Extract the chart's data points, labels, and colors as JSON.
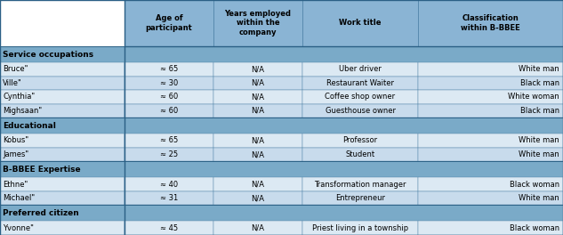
{
  "header_row": [
    "Age of\nparticipant",
    "Years employed\nwithin the\ncompany",
    "Work title",
    "Classification\nwithin B-BBEE"
  ],
  "header_bg": "#8ab4d4",
  "section_bg": "#7aaac8",
  "row_bg_even": "#dce9f3",
  "row_bg_odd": "#c8dbec",
  "border_color": "#4a7fa5",
  "border_color_thick": "#2a5f85",
  "sections": [
    {
      "section_label": "Service occupations",
      "rows": [
        [
          "Bruce\"",
          "≈ 65",
          "N/A",
          "Uber driver",
          "White man"
        ],
        [
          "Ville\"",
          "≈ 30",
          "N/A",
          "Restaurant Waiter",
          "Black man"
        ],
        [
          "Cynthia\"",
          "≈ 60",
          "N/A",
          "Coffee shop owner",
          "White woman"
        ],
        [
          "Mighsaan\"",
          "≈ 60",
          "N/A",
          "Guesthouse owner",
          "Black man"
        ]
      ]
    },
    {
      "section_label": "Educational",
      "rows": [
        [
          "Kobus\"",
          "≈ 65",
          "N/A",
          "Professor",
          "White man"
        ],
        [
          "James\"",
          "≈ 25",
          "N/A",
          "Student",
          "White man"
        ]
      ]
    },
    {
      "section_label": "B-BBEE Expertise",
      "rows": [
        [
          "Ethne\"",
          "≈ 40",
          "N/A",
          "Transformation manager",
          "Black woman"
        ],
        [
          "Michael\"",
          "≈ 31",
          "N/A",
          "Entrepreneur",
          "White man"
        ]
      ]
    },
    {
      "section_label": "Preferred citizen",
      "rows": [
        [
          "Yvonne\"",
          "≈ 45",
          "N/A",
          "Priest living in a township",
          "Black woman"
        ]
      ]
    }
  ]
}
